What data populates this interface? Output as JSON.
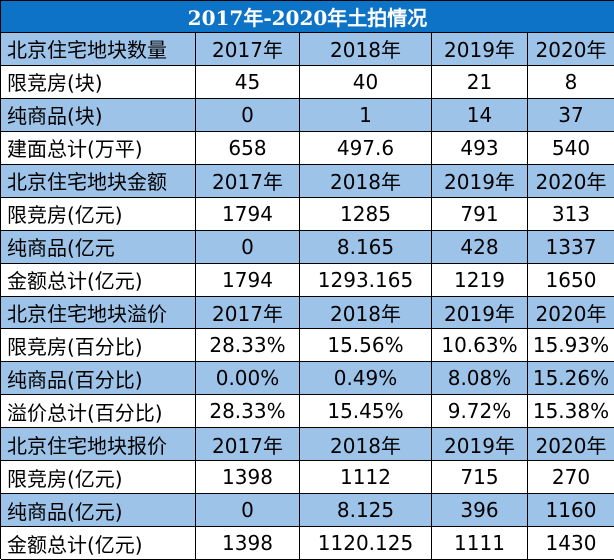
{
  "title": "2017年-2020年土拍情况",
  "colors": {
    "title_bg": "#0d73c7",
    "title_text": "#ffffff",
    "band_bg": "#9ec3e9",
    "plain_bg": "#ffffff"
  },
  "rows": [
    {
      "label": "北京住宅地块数量",
      "values": [
        "2017年",
        "2018年",
        "2019年",
        "2020年"
      ]
    },
    {
      "label": "限竞房(块)",
      "values": [
        "45",
        "40",
        "21",
        "8"
      ]
    },
    {
      "label": "纯商品(块)",
      "values": [
        "0",
        "1",
        "14",
        "37"
      ]
    },
    {
      "label": "建面总计(万平)",
      "values": [
        "658",
        "497.6",
        "493",
        "540"
      ]
    },
    {
      "label": "北京住宅地块金额",
      "values": [
        "2017年",
        "2018年",
        "2019年",
        "2020年"
      ]
    },
    {
      "label": "限竞房(亿元)",
      "values": [
        "1794",
        "1285",
        "791",
        "313"
      ]
    },
    {
      "label": "纯商品(亿元",
      "values": [
        "0",
        "8.165",
        "428",
        "1337"
      ]
    },
    {
      "label": "金额总计(亿元)",
      "values": [
        "1794",
        "1293.165",
        "1219",
        "1650"
      ]
    },
    {
      "label": "北京住宅地块溢价",
      "values": [
        "2017年",
        "2018年",
        "2019年",
        "2020年"
      ]
    },
    {
      "label": "限竞房(百分比)",
      "values": [
        "28.33%",
        "15.56%",
        "10.63%",
        "15.93%"
      ]
    },
    {
      "label": "纯商品(百分比)",
      "values": [
        "0.00%",
        "0.49%",
        "8.08%",
        "15.26%"
      ]
    },
    {
      "label": "溢价总计(百分比)",
      "values": [
        "28.33%",
        "15.45%",
        "9.72%",
        "15.38%"
      ]
    },
    {
      "label": "北京住宅地块报价",
      "values": [
        "2017年",
        "2018年",
        "2019年",
        "2020年"
      ]
    },
    {
      "label": "限竞房(亿元)",
      "values": [
        "1398",
        "1112",
        "715",
        "270"
      ]
    },
    {
      "label": "纯商品(亿元)",
      "values": [
        "0",
        "8.125",
        "396",
        "1160"
      ]
    },
    {
      "label": "金额总计(亿元)",
      "values": [
        "1398",
        "1120.125",
        "1111",
        "1430"
      ]
    }
  ]
}
